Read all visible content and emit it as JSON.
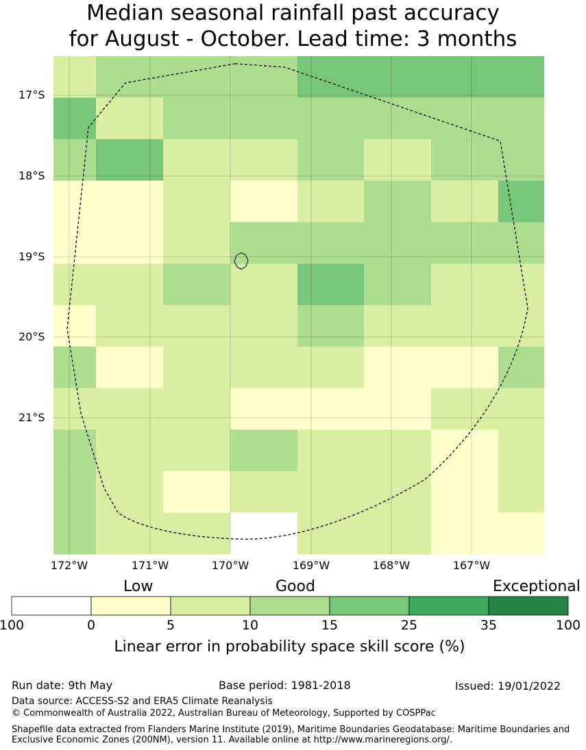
{
  "title_line1": "Median seasonal rainfall past accuracy",
  "title_line2": "for August - October. Lead time: 3 months",
  "lat_labels": [
    "17°S",
    "18°S",
    "19°S",
    "20°S",
    "21°S"
  ],
  "lon_labels": [
    "172°W",
    "171°W",
    "170°W",
    "169°W",
    "168°W",
    "167°W"
  ],
  "legend": {
    "categories": [
      "Low",
      "Good",
      "Exceptional"
    ],
    "ticks": [
      "100",
      "0",
      "5",
      "10",
      "15",
      "25",
      "35",
      "100"
    ],
    "colors": [
      "#ffffff",
      "#ffffcc",
      "#d9f0a3",
      "#addd8e",
      "#78c679",
      "#41ab5d",
      "#238443"
    ],
    "title": "Linear error in probability space skill score (%)"
  },
  "grid": {
    "colors": [
      "#ffffff",
      "#ffffcc",
      "#d9f0a3",
      "#addd8e",
      "#78c679"
    ],
    "rows": [
      [
        2,
        3,
        3,
        3,
        4,
        4,
        4,
        4
      ],
      [
        4,
        2,
        3,
        3,
        3,
        3,
        3,
        3
      ],
      [
        3,
        4,
        2,
        2,
        3,
        2,
        3,
        3
      ],
      [
        1,
        1,
        2,
        1,
        2,
        3,
        2,
        4
      ],
      [
        1,
        1,
        2,
        3,
        3,
        3,
        3,
        3
      ],
      [
        2,
        2,
        3,
        2,
        4,
        3,
        2,
        2
      ],
      [
        1,
        2,
        2,
        2,
        3,
        2,
        2,
        2
      ],
      [
        3,
        1,
        2,
        2,
        2,
        1,
        1,
        3
      ],
      [
        2,
        2,
        2,
        1,
        1,
        1,
        2,
        2
      ],
      [
        3,
        2,
        2,
        3,
        2,
        2,
        1,
        2
      ],
      [
        3,
        2,
        1,
        2,
        2,
        2,
        1,
        2
      ],
      [
        3,
        2,
        2,
        0,
        2,
        2,
        1,
        1
      ]
    ]
  },
  "footer": {
    "run_date": "Run date: 9th May",
    "base_period": "Base period: 1981-2018",
    "issued": "Issued: 19/01/2022",
    "data_source": "Data source: ACCESS-S2 and ERA5 Climate Reanalysis",
    "copyright": "© Commonwealth of Australia 2022, Australian Bureau of Meteorology, Supported by COSPPac",
    "shapefile": "Shapefile data extracted from Flanders Marine Institute (2019), Maritime Boundaries Geodatabase: Maritime Boundaries and Exclusive Economic Zones (200NM), version 11. Available online at http://www.marineregions.org/."
  }
}
